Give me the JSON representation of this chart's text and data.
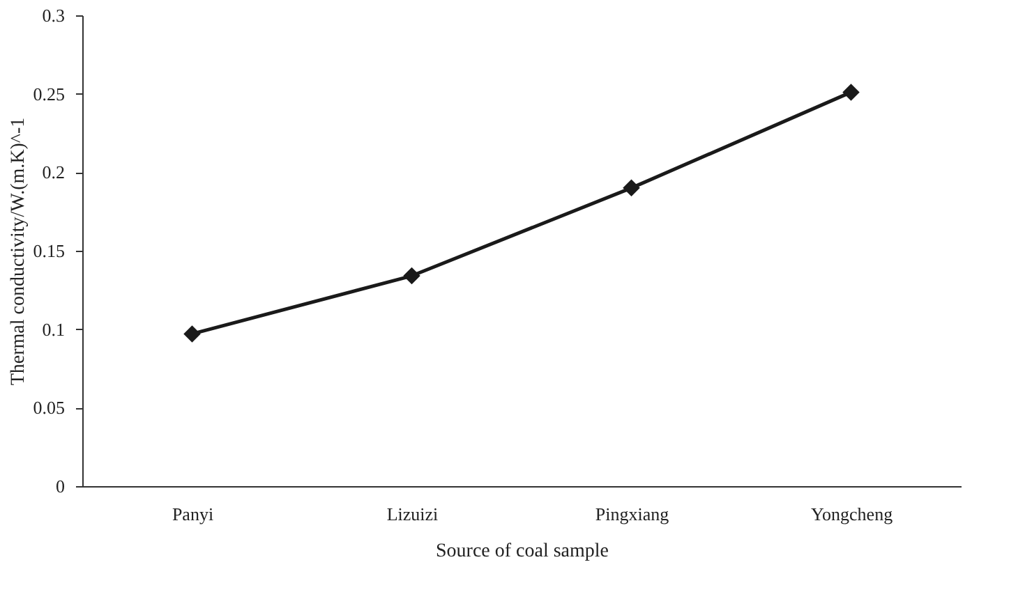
{
  "chart_data": {
    "type": "line",
    "xlabel": "Source of coal sample",
    "ylabel": "Thermal conductivity/W.(m.K)^-1",
    "categories": [
      "Panyi",
      "Lizuizi",
      "Pingxiang",
      "Yongcheng"
    ],
    "series": [
      {
        "color": "#1a1a1a",
        "values": [
          0.097,
          0.134,
          0.19,
          0.251
        ]
      }
    ],
    "ylim": [
      0,
      0.3
    ],
    "yticks": [
      0,
      0.05,
      0.1,
      0.15,
      0.2,
      0.25,
      0.3
    ],
    "grid": false,
    "marker": "diamond",
    "line_style": "solid"
  }
}
